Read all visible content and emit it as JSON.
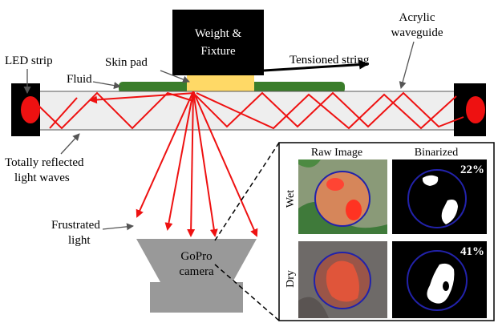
{
  "labels": {
    "weight_fixture_line1": "Weight &",
    "weight_fixture_line2": "Fixture",
    "acrylic_line1": "Acrylic",
    "acrylic_line2": "waveguide",
    "led_strip": "LED strip",
    "skin_pad": "Skin pad",
    "tensioned_string": "Tensioned string",
    "fluid": "Fluid",
    "totally_reflected_line1": "Totally reflected",
    "totally_reflected_line2": "light waves",
    "frustrated_line1": "Frustrated",
    "frustrated_line2": "light",
    "camera_line1": "GoPro",
    "camera_line2": "camera"
  },
  "inset": {
    "col_raw": "Raw Image",
    "col_binarized": "Binarized",
    "row_wet": "Wet",
    "row_dry": "Dry",
    "wet_percent": "22%",
    "dry_percent": "41%"
  },
  "colors": {
    "light_ray": "#ee1111",
    "skin_pad": "#ffd966",
    "fluid": "#3a7d2a",
    "waveguide": "#eeeeee",
    "led": "#ee1111",
    "camera": "#999999",
    "contact_circle": "#2222aa"
  }
}
